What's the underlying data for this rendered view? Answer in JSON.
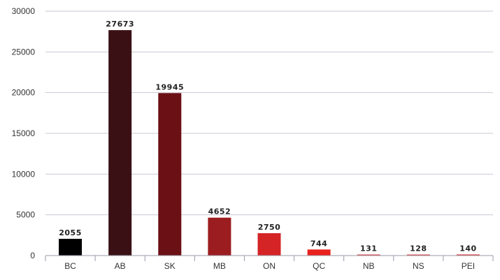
{
  "chart_data": {
    "type": "bar",
    "title": "",
    "xlabel": "",
    "ylabel": "",
    "categories": [
      "BC",
      "AB",
      "SK",
      "MB",
      "ON",
      "QC",
      "NB",
      "NS",
      "PEI"
    ],
    "values": [
      2055,
      27673,
      19945,
      4652,
      2750,
      744,
      131,
      128,
      140
    ],
    "data_labels": [
      "2055",
      "27673",
      "19945",
      "4652",
      "2750",
      "744",
      "131",
      "128",
      "140"
    ],
    "bar_colors": [
      "#000000",
      "#3a1015",
      "#6b1015",
      "#9c1d20",
      "#d42426",
      "#e8221c",
      "#e04040",
      "#e04040",
      "#e04040"
    ],
    "ylim": [
      0,
      30000
    ],
    "yticks": [
      0,
      5000,
      10000,
      15000,
      20000,
      25000,
      30000
    ],
    "ytick_labels": [
      "0",
      "5000",
      "10000",
      "15000",
      "20000",
      "25000",
      "30000"
    ],
    "grid": true,
    "legend": "none"
  }
}
